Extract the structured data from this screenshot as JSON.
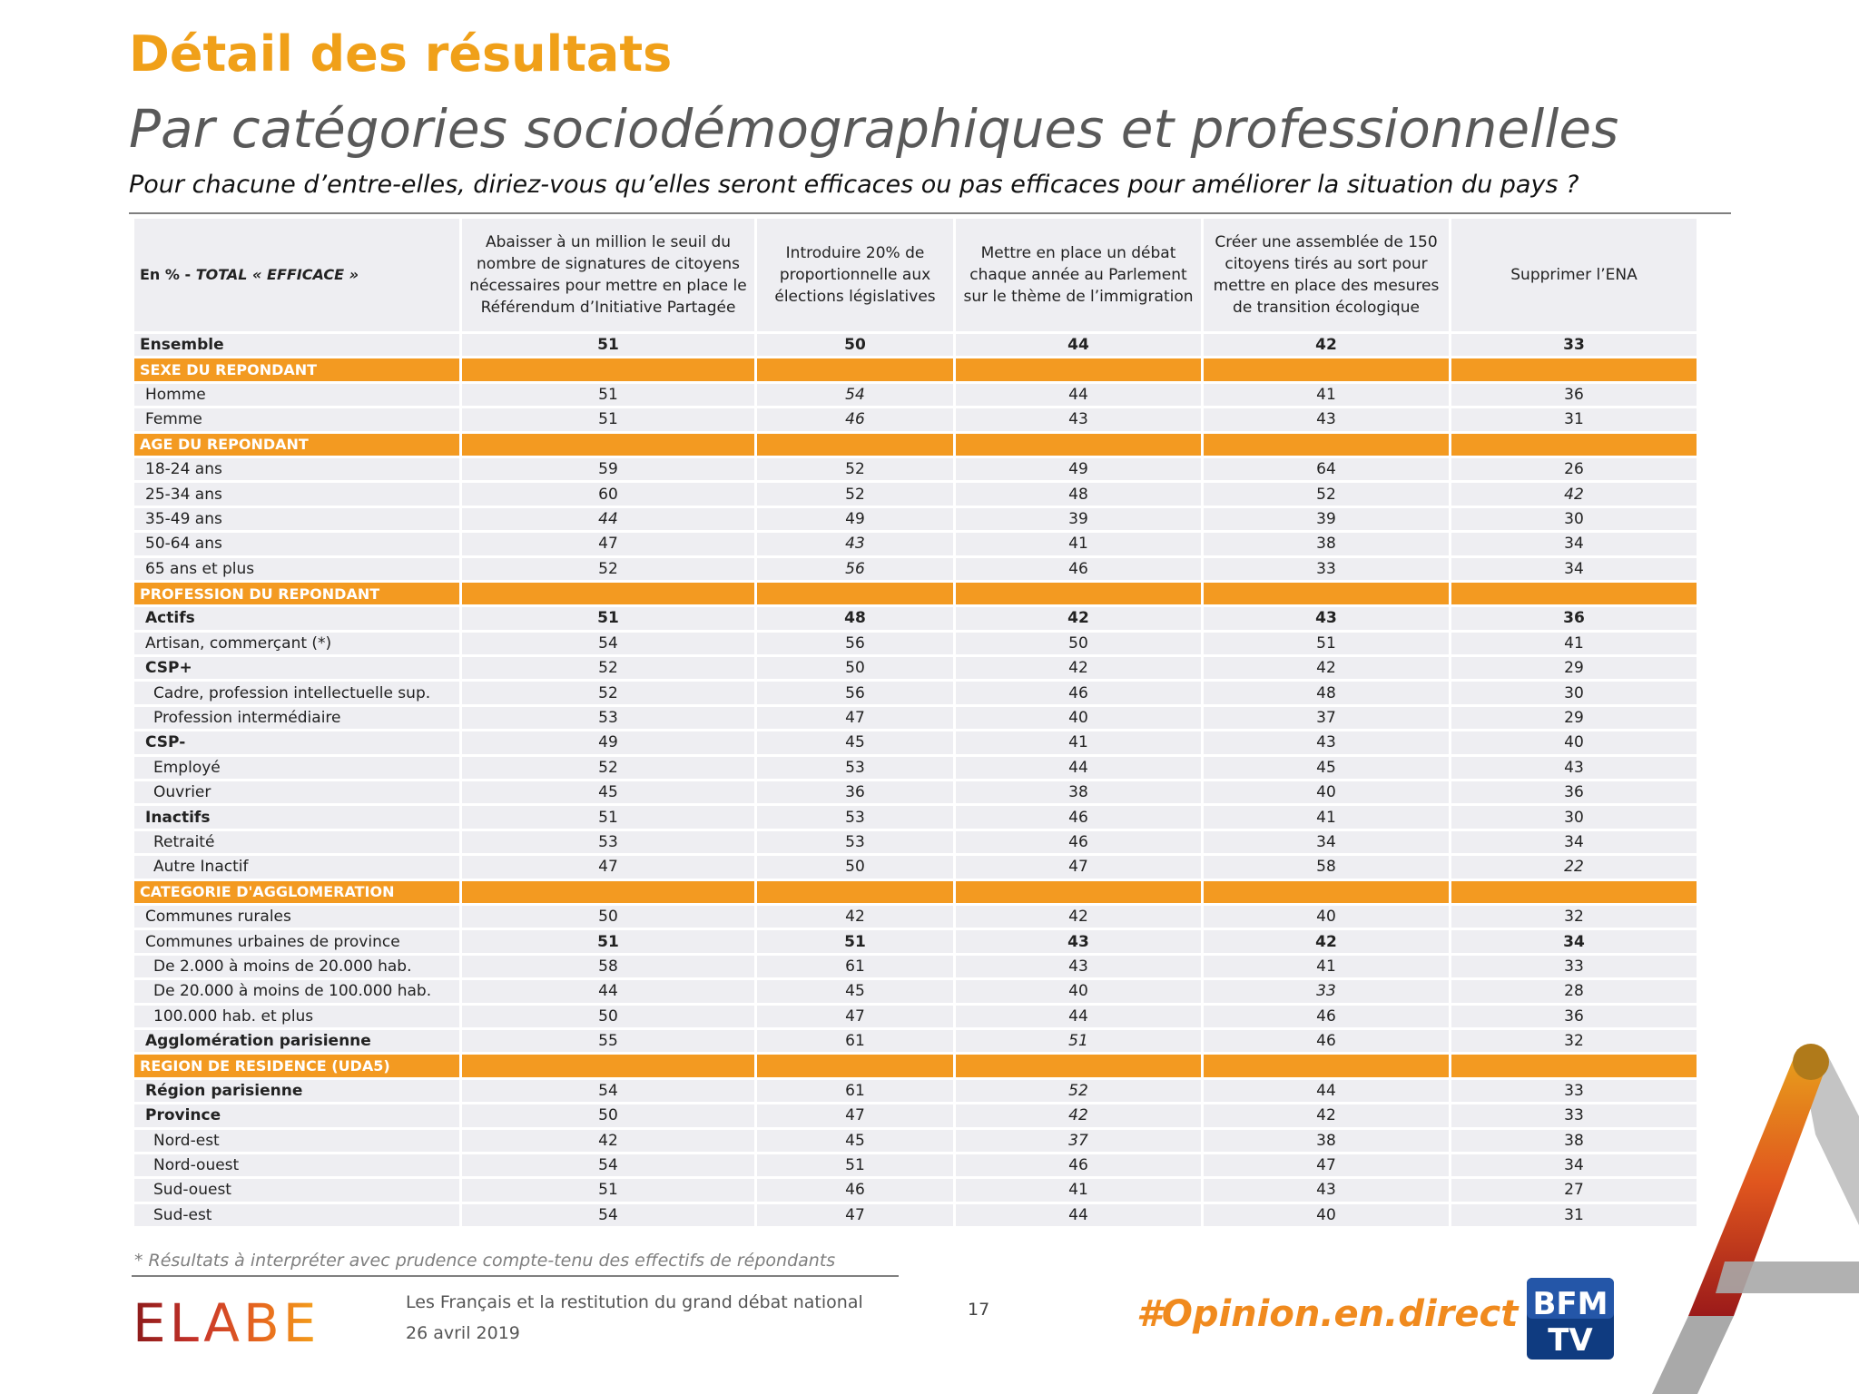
{
  "header": {
    "title": "Détail des résultats",
    "subtitle": "Par catégories sociodémographiques et professionnelles",
    "question": "Pour chacune d’entre-elles, diriez-vous qu’elles seront efficaces ou pas efficaces pour améliorer la situation du pays ?"
  },
  "table": {
    "corner_prefix": "En % - ",
    "corner_italic": "TOTAL « EFFICACE »",
    "columns": [
      "Abaisser à un million le seuil du nombre de signatures de citoyens nécessaires pour mettre en place le Référendum d’Initiative Partagée",
      "Introduire 20% de proportionnelle aux élections législatives",
      "Mettre en place un débat chaque année au Parlement sur le thème de l’immigration",
      "Créer une assemblée de 150 citoyens tirés au sort pour mettre en place des mesures de transition écologique",
      "Supprimer l’ENA"
    ],
    "rows": [
      {
        "type": "data",
        "label": "Ensemble",
        "bold": true,
        "indent": 0,
        "values": [
          "51",
          "50",
          "44",
          "42",
          "33"
        ],
        "italic": []
      },
      {
        "type": "section",
        "label": "SEXE DU REPONDANT"
      },
      {
        "type": "data",
        "label": "Homme",
        "bold": false,
        "indent": 1,
        "values": [
          "51",
          "54",
          "44",
          "41",
          "36"
        ],
        "italic": [
          1
        ]
      },
      {
        "type": "data",
        "label": "Femme",
        "bold": false,
        "indent": 1,
        "values": [
          "51",
          "46",
          "43",
          "43",
          "31"
        ],
        "italic": [
          1
        ]
      },
      {
        "type": "section",
        "label": "AGE DU REPONDANT"
      },
      {
        "type": "data",
        "label": "18-24 ans",
        "bold": false,
        "indent": 1,
        "values": [
          "59",
          "52",
          "49",
          "64",
          "26"
        ],
        "italic": []
      },
      {
        "type": "data",
        "label": "25-34 ans",
        "bold": false,
        "indent": 1,
        "values": [
          "60",
          "52",
          "48",
          "52",
          "42"
        ],
        "italic": [
          4
        ]
      },
      {
        "type": "data",
        "label": "35-49 ans",
        "bold": false,
        "indent": 1,
        "values": [
          "44",
          "49",
          "39",
          "39",
          "30"
        ],
        "italic": [
          0
        ]
      },
      {
        "type": "data",
        "label": "50-64 ans",
        "bold": false,
        "indent": 1,
        "values": [
          "47",
          "43",
          "41",
          "38",
          "34"
        ],
        "italic": [
          1
        ]
      },
      {
        "type": "data",
        "label": "65 ans et plus",
        "bold": false,
        "indent": 1,
        "values": [
          "52",
          "56",
          "46",
          "33",
          "34"
        ],
        "italic": [
          1
        ]
      },
      {
        "type": "section",
        "label": "PROFESSION DU REPONDANT"
      },
      {
        "type": "data",
        "label": "Actifs",
        "bold": true,
        "indent": 1,
        "values": [
          "51",
          "48",
          "42",
          "43",
          "36"
        ],
        "italic": []
      },
      {
        "type": "data",
        "label": "Artisan, commerçant (*)",
        "bold": false,
        "indent": 1,
        "values": [
          "54",
          "56",
          "50",
          "51",
          "41"
        ],
        "italic": []
      },
      {
        "type": "data",
        "label": "CSP+",
        "bold": true,
        "indent": 1,
        "values": [
          "52",
          "50",
          "42",
          "42",
          "29"
        ],
        "italic": [],
        "bold_label_only": true
      },
      {
        "type": "data",
        "label": "Cadre, profession intellectuelle sup.",
        "bold": false,
        "indent": 2,
        "values": [
          "52",
          "56",
          "46",
          "48",
          "30"
        ],
        "italic": []
      },
      {
        "type": "data",
        "label": "Profession intermédiaire",
        "bold": false,
        "indent": 2,
        "values": [
          "53",
          "47",
          "40",
          "37",
          "29"
        ],
        "italic": []
      },
      {
        "type": "data",
        "label": "CSP-",
        "bold": true,
        "indent": 1,
        "values": [
          "49",
          "45",
          "41",
          "43",
          "40"
        ],
        "italic": [],
        "bold_label_only": true
      },
      {
        "type": "data",
        "label": "Employé",
        "bold": false,
        "indent": 2,
        "values": [
          "52",
          "53",
          "44",
          "45",
          "43"
        ],
        "italic": []
      },
      {
        "type": "data",
        "label": "Ouvrier",
        "bold": false,
        "indent": 2,
        "values": [
          "45",
          "36",
          "38",
          "40",
          "36"
        ],
        "italic": []
      },
      {
        "type": "data",
        "label": "Inactifs",
        "bold": true,
        "indent": 1,
        "values": [
          "51",
          "53",
          "46",
          "41",
          "30"
        ],
        "italic": [],
        "bold_label_only": true
      },
      {
        "type": "data",
        "label": "Retraité",
        "bold": false,
        "indent": 2,
        "values": [
          "53",
          "53",
          "46",
          "34",
          "34"
        ],
        "italic": []
      },
      {
        "type": "data",
        "label": "Autre Inactif",
        "bold": false,
        "indent": 2,
        "values": [
          "47",
          "50",
          "47",
          "58",
          "22"
        ],
        "italic": [
          4
        ]
      },
      {
        "type": "section",
        "label": "CATEGORIE D'AGGLOMERATION"
      },
      {
        "type": "data",
        "label": "Communes rurales",
        "bold": false,
        "indent": 1,
        "values": [
          "50",
          "42",
          "42",
          "40",
          "32"
        ],
        "italic": []
      },
      {
        "type": "data",
        "label": "Communes urbaines de province",
        "bold": false,
        "indent": 1,
        "values": [
          "51",
          "51",
          "43",
          "42",
          "34"
        ],
        "italic": [],
        "bold_values_only": true
      },
      {
        "type": "data",
        "label": "De 2.000 à moins de 20.000 hab.",
        "bold": false,
        "indent": 2,
        "values": [
          "58",
          "61",
          "43",
          "41",
          "33"
        ],
        "italic": []
      },
      {
        "type": "data",
        "label": "De 20.000 à moins de 100.000 hab.",
        "bold": false,
        "indent": 2,
        "values": [
          "44",
          "45",
          "40",
          "33",
          "28"
        ],
        "italic": [
          3
        ]
      },
      {
        "type": "data",
        "label": "100.000 hab. et plus",
        "bold": false,
        "indent": 2,
        "values": [
          "50",
          "47",
          "44",
          "46",
          "36"
        ],
        "italic": []
      },
      {
        "type": "data",
        "label": "Agglomération parisienne",
        "bold": true,
        "indent": 1,
        "values": [
          "55",
          "61",
          "51",
          "46",
          "32"
        ],
        "italic": [
          2
        ],
        "bold_label_only": true
      },
      {
        "type": "section",
        "label": "REGION DE RESIDENCE (UDA5)"
      },
      {
        "type": "data",
        "label": "Région parisienne",
        "bold": true,
        "indent": 1,
        "values": [
          "54",
          "61",
          "52",
          "44",
          "33"
        ],
        "italic": [
          2
        ],
        "bold_label_only": true
      },
      {
        "type": "data",
        "label": "Province",
        "bold": true,
        "indent": 1,
        "values": [
          "50",
          "47",
          "42",
          "42",
          "33"
        ],
        "italic": [
          2
        ],
        "bold_label_only": true
      },
      {
        "type": "data",
        "label": "Nord-est",
        "bold": false,
        "indent": 2,
        "values": [
          "42",
          "45",
          "37",
          "38",
          "38"
        ],
        "italic": [
          2
        ]
      },
      {
        "type": "data",
        "label": "Nord-ouest",
        "bold": false,
        "indent": 2,
        "values": [
          "54",
          "51",
          "46",
          "47",
          "34"
        ],
        "italic": []
      },
      {
        "type": "data",
        "label": "Sud-ouest",
        "bold": false,
        "indent": 2,
        "values": [
          "51",
          "46",
          "41",
          "43",
          "27"
        ],
        "italic": []
      },
      {
        "type": "data",
        "label": "Sud-est",
        "bold": false,
        "indent": 2,
        "values": [
          "54",
          "47",
          "44",
          "40",
          "31"
        ],
        "italic": []
      }
    ]
  },
  "footnote": "* Résultats à interpréter avec prudence compte-tenu des effectifs de répondants",
  "footer": {
    "logo_text": "ELABE",
    "study_title": "Les Français et la restitution du grand débat national",
    "date": "26 avril 2019",
    "page_number": "17",
    "hashtag": "#Opinion.en.direct",
    "partner_logo": "BFM TV",
    "partner_logo_text_a": "BFM",
    "partner_logo_text_b": "TV"
  },
  "colors": {
    "accent_orange": "#F39A21",
    "title_orange": "#F0A019",
    "cell_bg": "#EEEEF2"
  }
}
